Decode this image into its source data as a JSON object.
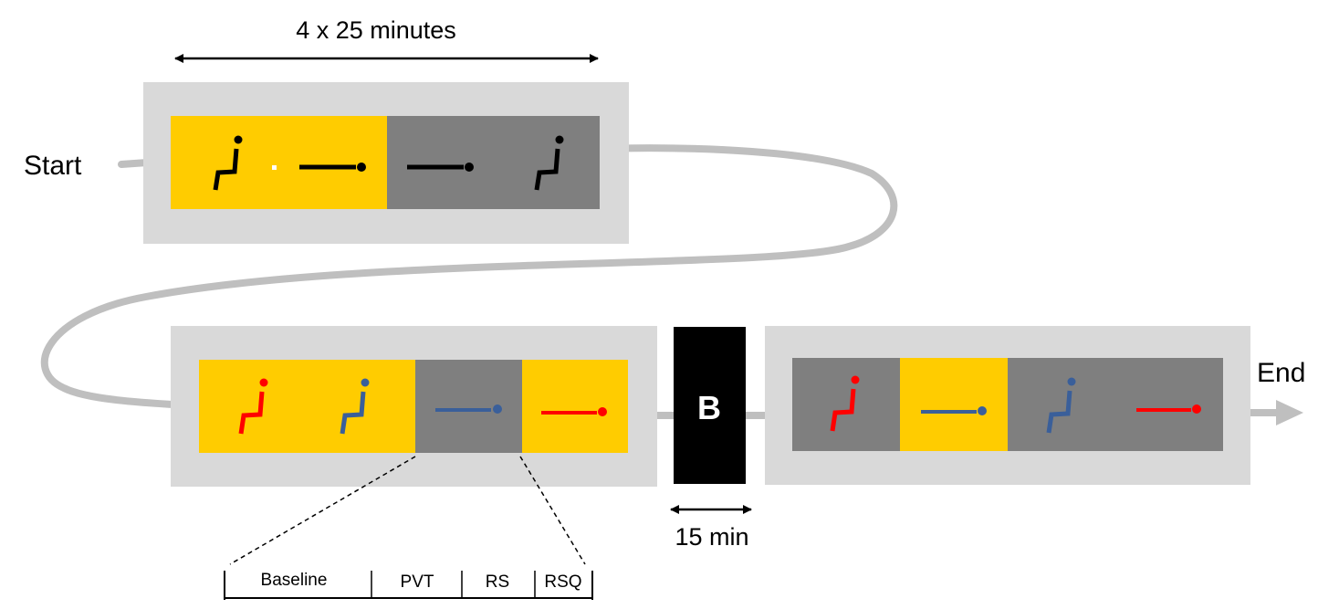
{
  "labels": {
    "start": "Start",
    "end": "End",
    "duration_top": "4 x 25 minutes",
    "break_label": "B",
    "break_duration": "15 min"
  },
  "colors": {
    "container": "#d9d9d9",
    "yellow": "#ffcc00",
    "gray": "#7f7f7f",
    "path": "#bfbfbf",
    "black": "#000000",
    "red": "#ff0000",
    "blue": "#3a5f9a"
  },
  "rows": [
    {
      "segments": [
        {
          "bg": "yellow",
          "icons": [
            {
              "type": "seated-icon",
              "color": "black"
            },
            {
              "type": "supine-icon",
              "color": "black"
            }
          ]
        },
        {
          "bg": "gray",
          "icons": [
            {
              "type": "supine-icon",
              "color": "black"
            },
            {
              "type": "seated-icon",
              "color": "black"
            }
          ]
        }
      ]
    },
    {
      "segments": [
        {
          "bg": "yellow",
          "icons": [
            {
              "type": "seated-icon",
              "color": "red"
            },
            {
              "type": "seated-icon",
              "color": "blue"
            }
          ]
        },
        {
          "bg": "gray",
          "icons": [
            {
              "type": "supine-icon",
              "color": "blue"
            }
          ]
        },
        {
          "bg": "yellow",
          "icons": [
            {
              "type": "supine-icon",
              "color": "red"
            }
          ]
        }
      ]
    },
    {
      "segments": [
        {
          "bg": "gray",
          "icons": [
            {
              "type": "seated-icon",
              "color": "red"
            }
          ]
        },
        {
          "bg": "yellow",
          "icons": [
            {
              "type": "supine-icon",
              "color": "blue"
            }
          ]
        },
        {
          "bg": "gray",
          "icons": [
            {
              "type": "seated-icon",
              "color": "blue"
            },
            {
              "type": "supine-icon",
              "color": "red"
            }
          ]
        }
      ]
    }
  ],
  "timeline": {
    "sections": [
      "Baseline",
      "PVT",
      "RS",
      "RSQ"
    ]
  }
}
